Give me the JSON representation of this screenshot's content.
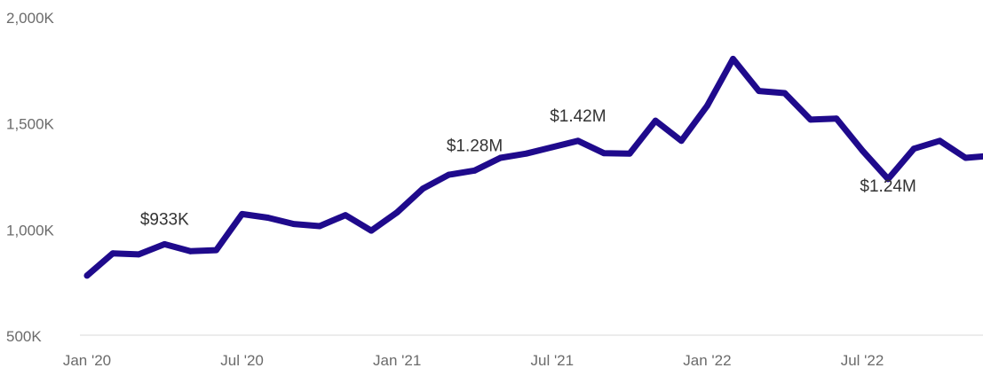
{
  "chart_data": {
    "type": "line",
    "title": "",
    "xlabel": "",
    "ylabel": "",
    "ylim": [
      500,
      2000
    ],
    "y_ticks": [
      "500K",
      "1,000K",
      "1,500K",
      "2,000K"
    ],
    "y_tick_values": [
      500,
      1000,
      1500,
      2000
    ],
    "x_ticks": [
      "Jan '20",
      "Jul '20",
      "Jan '21",
      "Jul '21",
      "Jan '22",
      "Jul '22"
    ],
    "x_tick_dates": [
      "2020-01",
      "2020-07",
      "2021-01",
      "2021-07",
      "2022-01",
      "2022-07"
    ],
    "grid": false,
    "colors": {
      "line": "#1f0a8c",
      "axis": "#d9d9d9"
    },
    "series": [
      {
        "x": [
          "2020-01",
          "2020-02",
          "2020-03",
          "2020-04",
          "2020-05",
          "2020-06",
          "2020-07",
          "2020-08",
          "2020-09",
          "2020-10",
          "2020-11",
          "2020-12",
          "2021-01",
          "2021-02",
          "2021-03",
          "2021-04",
          "2021-05",
          "2021-06",
          "2021-07",
          "2021-08",
          "2021-09",
          "2021-10",
          "2021-11",
          "2021-12",
          "2022-01",
          "2022-02",
          "2022-03",
          "2022-04",
          "2022-05",
          "2022-06",
          "2022-07",
          "2022-08",
          "2022-09",
          "2022-10",
          "2022-11",
          "2022-12"
        ],
        "values": [
          785,
          890,
          885,
          933,
          900,
          905,
          1075,
          1058,
          1028,
          1018,
          1070,
          997,
          1083,
          1195,
          1260,
          1280,
          1340,
          1360,
          1390,
          1420,
          1362,
          1360,
          1515,
          1420,
          1585,
          1806,
          1655,
          1645,
          1520,
          1525,
          1375,
          1240,
          1383,
          1420,
          1340,
          1350
        ]
      }
    ],
    "annotations": [
      {
        "date": "2020-04",
        "value": 933,
        "text": "$933K"
      },
      {
        "date": "2021-04",
        "value": 1280,
        "text": "$1.28M"
      },
      {
        "date": "2021-08",
        "value": 1420,
        "text": "$1.42M"
      },
      {
        "date": "2022-08",
        "value": 1240,
        "text": "$1.24M"
      }
    ]
  }
}
